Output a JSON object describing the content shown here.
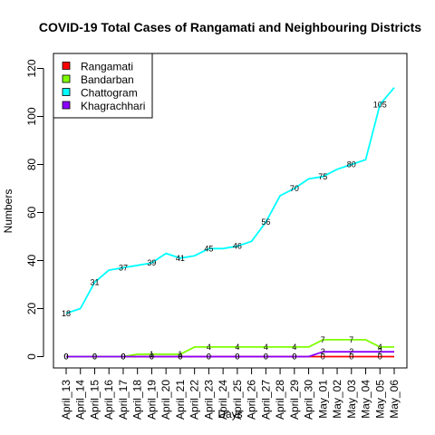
{
  "chart_data": {
    "type": "line",
    "title": "COVID-19 Total Cases of Rangamati and Neighbouring Districts",
    "xlabel": "Days",
    "ylabel": "Numbers",
    "ylim": [
      0,
      120
    ],
    "yticks": [
      0,
      20,
      40,
      60,
      80,
      100,
      120
    ],
    "grid": false,
    "legend_position": "top-left",
    "categories": [
      "April_13",
      "April_14",
      "April_15",
      "April_16",
      "April_17",
      "April_18",
      "April_19",
      "April_20",
      "April_21",
      "April_22",
      "April_23",
      "April_24",
      "April_25",
      "April_26",
      "April_27",
      "April_28",
      "April_29",
      "April_30",
      "May_01",
      "May_02",
      "May_03",
      "May_04",
      "May_05",
      "May_06"
    ],
    "tick_labels": [
      "April_13",
      "April_14",
      "April_15",
      "April_16",
      "April_17",
      "April_18",
      "April_19",
      "April_20",
      "April_21",
      "April_22",
      "April_23",
      "April_24",
      "April_25",
      "April_26",
      "April_27",
      "April_28",
      "April_29",
      "April_30",
      "May_01",
      "May_02",
      "May_03",
      "May_04",
      "May_05",
      "May_06"
    ],
    "series": [
      {
        "name": "Rangamati",
        "color": "#ff0000",
        "values": [
          0,
          0,
          0,
          0,
          0,
          0,
          0,
          0,
          0,
          0,
          0,
          0,
          0,
          0,
          0,
          0,
          0,
          0,
          0,
          0,
          0,
          0,
          0,
          0
        ],
        "labels": [
          {
            "i": 0,
            "text": "0"
          },
          {
            "i": 2,
            "text": "0"
          },
          {
            "i": 4,
            "text": "0"
          },
          {
            "i": 6,
            "text": "0"
          },
          {
            "i": 8,
            "text": "0"
          },
          {
            "i": 10,
            "text": "0"
          },
          {
            "i": 12,
            "text": "0"
          },
          {
            "i": 14,
            "text": "0"
          },
          {
            "i": 16,
            "text": "0"
          },
          {
            "i": 18,
            "text": "0"
          },
          {
            "i": 20,
            "text": "0"
          },
          {
            "i": 22,
            "text": "0"
          }
        ]
      },
      {
        "name": "Bandarban",
        "color": "#7fff00",
        "values": [
          0,
          0,
          0,
          0,
          0,
          1,
          1,
          1,
          1,
          4,
          4,
          4,
          4,
          4,
          4,
          4,
          4,
          4,
          7,
          7,
          7,
          7,
          4,
          4
        ],
        "labels": [
          {
            "i": 0,
            "text": "0"
          },
          {
            "i": 2,
            "text": "0"
          },
          {
            "i": 4,
            "text": "0"
          },
          {
            "i": 6,
            "text": "1"
          },
          {
            "i": 8,
            "text": "1"
          },
          {
            "i": 10,
            "text": "4"
          },
          {
            "i": 12,
            "text": "4"
          },
          {
            "i": 14,
            "text": "4"
          },
          {
            "i": 16,
            "text": "4"
          },
          {
            "i": 18,
            "text": "7"
          },
          {
            "i": 20,
            "text": "7"
          },
          {
            "i": 22,
            "text": "4"
          }
        ]
      },
      {
        "name": "Chattogram",
        "color": "#00ffff",
        "values": [
          18,
          20,
          31,
          36,
          37,
          38,
          39,
          43,
          41,
          42,
          45,
          45,
          46,
          48,
          56,
          67,
          70,
          74,
          75,
          78,
          80,
          82,
          105,
          112
        ],
        "labels": [
          {
            "i": 0,
            "text": "18"
          },
          {
            "i": 2,
            "text": "31"
          },
          {
            "i": 4,
            "text": "37"
          },
          {
            "i": 6,
            "text": "39"
          },
          {
            "i": 8,
            "text": "41"
          },
          {
            "i": 10,
            "text": "45"
          },
          {
            "i": 12,
            "text": "46"
          },
          {
            "i": 14,
            "text": "56"
          },
          {
            "i": 16,
            "text": "70"
          },
          {
            "i": 18,
            "text": "75"
          },
          {
            "i": 20,
            "text": "80"
          },
          {
            "i": 22,
            "text": "105"
          }
        ]
      },
      {
        "name": "Khagrachhari",
        "color": "#8b00ff",
        "values": [
          0,
          0,
          0,
          0,
          0,
          0,
          0,
          0,
          0,
          0,
          0,
          0,
          0,
          0,
          0,
          0,
          0,
          0,
          2,
          2,
          2,
          2,
          2,
          2
        ],
        "labels": [
          {
            "i": 0,
            "text": "0"
          },
          {
            "i": 2,
            "text": "0"
          },
          {
            "i": 4,
            "text": "0"
          },
          {
            "i": 6,
            "text": "0"
          },
          {
            "i": 8,
            "text": "0"
          },
          {
            "i": 10,
            "text": "0"
          },
          {
            "i": 12,
            "text": "0"
          },
          {
            "i": 14,
            "text": "0"
          },
          {
            "i": 16,
            "text": "0"
          },
          {
            "i": 18,
            "text": "2"
          },
          {
            "i": 20,
            "text": "2"
          },
          {
            "i": 22,
            "text": "2"
          }
        ]
      }
    ]
  }
}
